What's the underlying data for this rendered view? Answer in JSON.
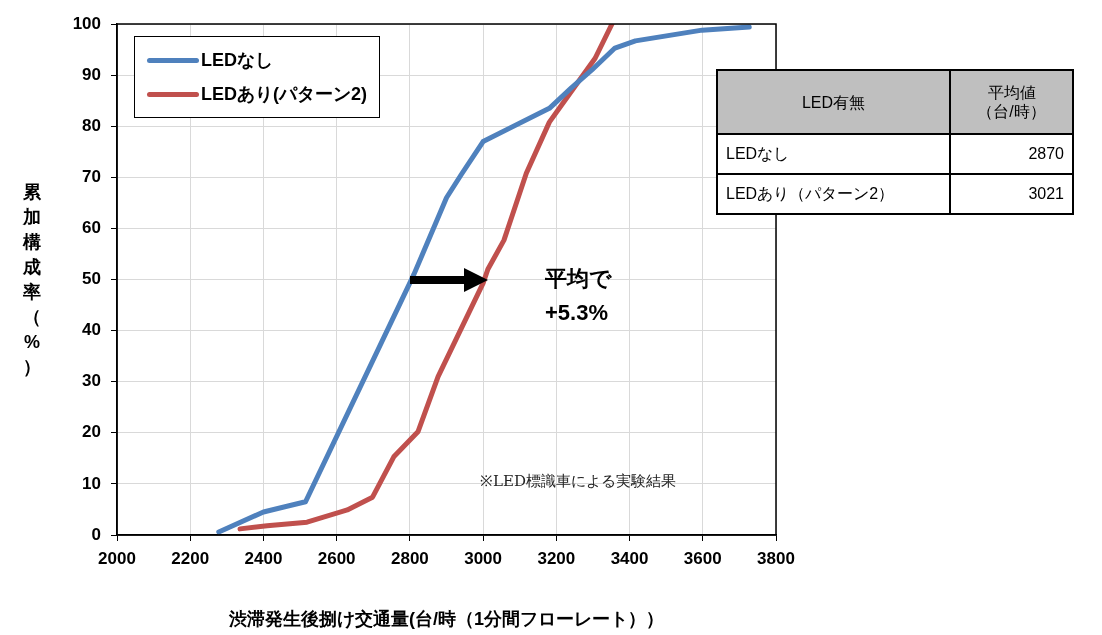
{
  "chart_data": {
    "type": "line",
    "xlabel": "渋滞発生後捌け交通量(台/時（1分間フローレート））",
    "ylabel": "累加構成率（%）",
    "xlim": [
      2000,
      3800
    ],
    "xticks": [
      2000,
      2200,
      2400,
      2600,
      2800,
      3000,
      3200,
      3400,
      3600,
      3800
    ],
    "ylim": [
      0,
      100
    ],
    "yticks": [
      0,
      10,
      20,
      30,
      40,
      50,
      60,
      70,
      80,
      90,
      100
    ],
    "grid": true,
    "legend": "top left",
    "marker": "none",
    "line_style": "solid",
    "series": [
      {
        "name": "LEDなし",
        "color": "#4f81bd",
        "x": [
          2278,
          2400,
          2515,
          2811,
          2900,
          2940,
          3000,
          3181,
          3241,
          3297,
          3360,
          3416,
          3598,
          3727
        ],
        "values": [
          0.6,
          4.5,
          6.5,
          51,
          66,
          70.5,
          77,
          83.5,
          87.5,
          91,
          95.3,
          96.7,
          98.8,
          99.4
        ]
      },
      {
        "name": "LEDあり(パターン2)",
        "color": "#c0504d",
        "x": [
          2336,
          2410,
          2519,
          2629,
          2698,
          2756,
          2822,
          2877,
          3000,
          3013,
          3057,
          3118,
          3181,
          3233,
          3306,
          3352
        ],
        "values": [
          1.2,
          1.8,
          2.5,
          4.9,
          7.4,
          15.3,
          20.2,
          31,
          49.3,
          52,
          57.7,
          70.8,
          80.8,
          86,
          93.3,
          100
        ]
      }
    ],
    "annotations": [
      "平均で\n+5.3%",
      "※LED標識車による実験結果",
      "LED有無",
      "平均値（台/時）",
      "LEDなし",
      "2870",
      "LEDあり（パターン2）",
      "3021"
    ]
  }
}
